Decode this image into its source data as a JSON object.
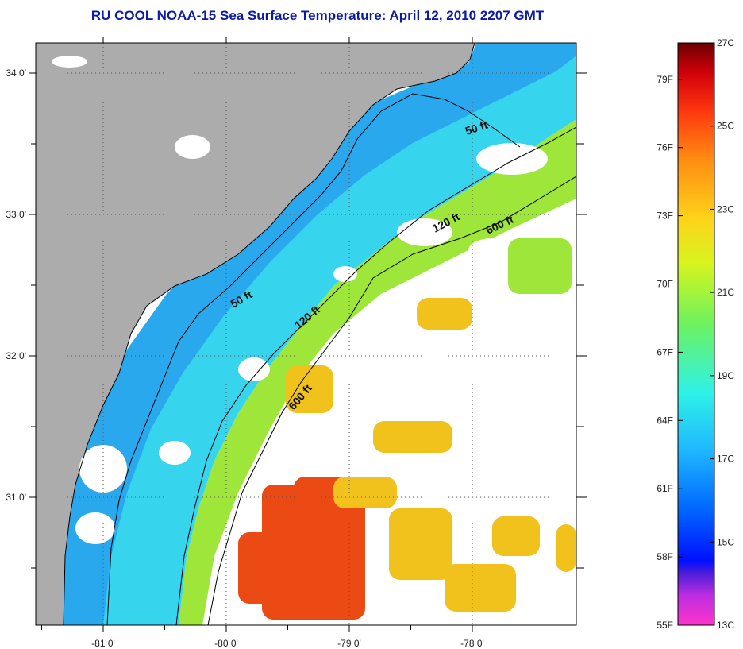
{
  "title": "RU COOL  NOAA-15  Sea Surface Temperature:  April 12, 2010 2207 GMT",
  "map": {
    "lat_ticks": [
      {
        "value": 34,
        "label": "34 0'"
      },
      {
        "value": 33,
        "label": "33 0'"
      },
      {
        "value": 32,
        "label": "32 0'"
      },
      {
        "value": 31,
        "label": "31 0'"
      }
    ],
    "lon_ticks": [
      {
        "value": -81,
        "label": "-81 0'"
      },
      {
        "value": -80,
        "label": "-80 0'"
      },
      {
        "value": -79,
        "label": "-79 0'"
      },
      {
        "value": -78,
        "label": "-78 0'"
      }
    ],
    "contours": [
      {
        "name": "50 ft",
        "label": "50 ft"
      },
      {
        "name": "120 ft",
        "label": "120 ft"
      },
      {
        "name": "600 ft",
        "label": "600 ft"
      }
    ],
    "colors": {
      "land": "#acacac",
      "cloud": "#ffffff",
      "cold_water": "#2aa8ee",
      "cool_water": "#37d4ee",
      "mid_water": "#9fe63a",
      "warm_water": "#f2c21c",
      "hot_water": "#ec4a14"
    }
  },
  "colorbar": {
    "fahrenheit": [
      {
        "value": 79,
        "label": "79F"
      },
      {
        "value": 76,
        "label": "76F"
      },
      {
        "value": 73,
        "label": "73F"
      },
      {
        "value": 70,
        "label": "70F"
      },
      {
        "value": 67,
        "label": "67F"
      },
      {
        "value": 64,
        "label": "64F"
      },
      {
        "value": 61,
        "label": "61F"
      },
      {
        "value": 58,
        "label": "58F"
      },
      {
        "value": 55,
        "label": "55F"
      }
    ],
    "celsius": [
      {
        "value": 27,
        "label": "27C"
      },
      {
        "value": 25,
        "label": "25C"
      },
      {
        "value": 23,
        "label": "23C"
      },
      {
        "value": 21,
        "label": "21C"
      },
      {
        "value": 19,
        "label": "19C"
      },
      {
        "value": 17,
        "label": "17C"
      },
      {
        "value": 15,
        "label": "15C"
      },
      {
        "value": 13,
        "label": "13C"
      }
    ],
    "colors": [
      "#ff33cc",
      "#7d2ad8",
      "#0010ff",
      "#0068ff",
      "#1fb7ff",
      "#2ef2e6",
      "#6ef25c",
      "#d6f51e",
      "#ffd21a",
      "#ff8c12",
      "#ff3a0e",
      "#e2000a",
      "#7a0000"
    ]
  }
}
